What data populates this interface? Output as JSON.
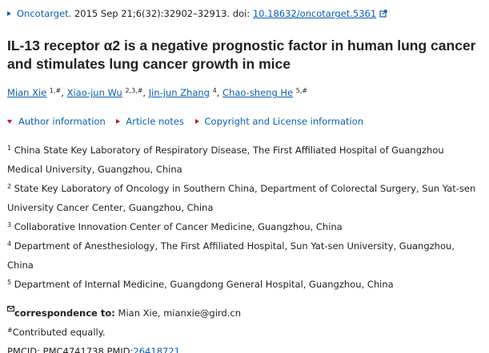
{
  "citation": {
    "journal": "Oncotarget.",
    "details": "2015 Sep 21;6(32):32902–32913. doi:",
    "doi": "10.18632/oncotarget.5361"
  },
  "title": "IL-13 receptor α2 is a negative prognostic factor in human lung cancer and stimulates lung cancer growth in mice",
  "authors": [
    {
      "name": "Mian Xie",
      "sup": "1,#",
      "sep": ","
    },
    {
      "name": "Xiao-jun Wu",
      "sup": "2,3,#",
      "sep": ","
    },
    {
      "name": "Jin-jun Zhang",
      "sup": "4",
      "sep": ","
    },
    {
      "name": "Chao-sheng He",
      "sup": "5,#"
    }
  ],
  "links": [
    "Author information",
    "Article notes",
    "Copyright and License information"
  ],
  "affiliations": [
    {
      "num": "1",
      "text": "China State Key Laboratory of Respiratory Disease, The First Affiliated Hospital of Guangzhou Medical University, Guangzhou, China"
    },
    {
      "num": "2",
      "text": "State Key Laboratory of Oncology in Southern China, Department of Colorectal Surgery, Sun Yat-sen University Cancer Center, Guangzhou, China"
    },
    {
      "num": "3",
      "text": "Collaborative Innovation Center of Cancer Medicine, Guangzhou, China"
    },
    {
      "num": "4",
      "text": "Department of Anesthesiology, The First Affiliated Hospital, Sun Yat-sen University, Guangzhou, China"
    },
    {
      "num": "5",
      "text": "Department of Internal Medicine, Guangdong General Hospital, Guangzhou, China"
    }
  ],
  "correspondence": {
    "label": "correspondence to:",
    "text": "Mian Xie, mianxie@gird.cn"
  },
  "note": {
    "mark": "#",
    "text": "Contributed equally."
  },
  "ids": {
    "pmcid": "PMCID: PMC4741738",
    "pmid_label": "PMID:",
    "pmid": "26418721"
  }
}
